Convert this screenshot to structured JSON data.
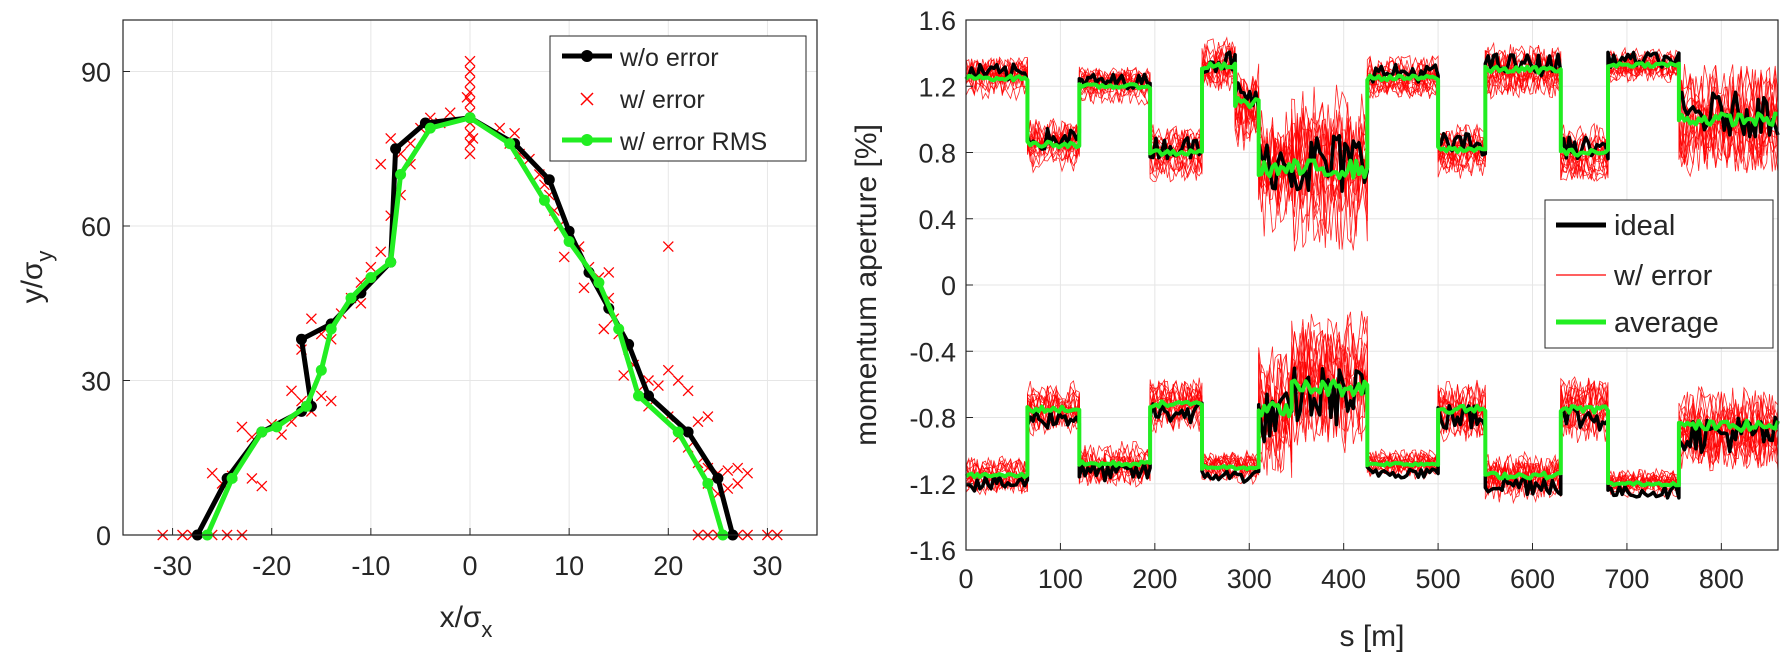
{
  "chart_data": [
    {
      "type": "line",
      "xlabel_main": "x/σ",
      "xlabel_sub": "x",
      "ylabel_main": "y/σ",
      "ylabel_sub": "y",
      "xlim": [
        -35,
        35
      ],
      "ylim": [
        0,
        100
      ],
      "xticks": [
        -30,
        -20,
        -10,
        0,
        10,
        20,
        30
      ],
      "yticks": [
        0,
        30,
        60,
        90
      ],
      "xtick_labels": [
        "-30",
        "-20",
        "-10",
        "0",
        "10",
        "20",
        "30"
      ],
      "ytick_labels": [
        "0",
        "30",
        "60",
        "90"
      ],
      "grid": true,
      "legend_position": "top-right",
      "colors": {
        "black": "#000000",
        "red": "#ff0000",
        "green": "#22ee22"
      },
      "series": [
        {
          "name": "w/o error",
          "color": "#000000",
          "points": [
            [
              -27.5,
              0
            ],
            [
              -24.5,
              11
            ],
            [
              -21,
              20
            ],
            [
              -17,
              24
            ],
            [
              -16,
              25
            ],
            [
              -17,
              38
            ],
            [
              -14,
              41
            ],
            [
              -11,
              47
            ],
            [
              -8,
              53
            ],
            [
              -7.5,
              75
            ],
            [
              -4.5,
              80
            ],
            [
              0,
              81
            ],
            [
              4.5,
              76
            ],
            [
              8,
              69
            ],
            [
              10,
              59
            ],
            [
              12,
              51
            ],
            [
              14,
              44
            ],
            [
              16,
              37
            ],
            [
              18,
              27
            ],
            [
              22,
              20
            ],
            [
              25,
              11
            ],
            [
              26.5,
              0
            ]
          ]
        },
        {
          "name": "w/ error",
          "color": "#ff0000",
          "points": [
            [
              -31,
              0
            ],
            [
              -29,
              0
            ],
            [
              -28,
              0
            ],
            [
              -26,
              0
            ],
            [
              -24.5,
              0
            ],
            [
              -23,
              0
            ],
            [
              -26,
              12
            ],
            [
              -24,
              11.5
            ],
            [
              -22,
              11
            ],
            [
              -25,
              10
            ],
            [
              -21,
              9.5
            ],
            [
              -23,
              21
            ],
            [
              -20,
              21.5
            ],
            [
              -18,
              22
            ],
            [
              -22,
              19
            ],
            [
              -19,
              19.5
            ],
            [
              -17,
              26
            ],
            [
              -18,
              28
            ],
            [
              -15,
              27
            ],
            [
              -16,
              24
            ],
            [
              -14,
              26
            ],
            [
              -17,
              36
            ],
            [
              -15,
              39
            ],
            [
              -16,
              42
            ],
            [
              -13,
              43
            ],
            [
              -12,
              46
            ],
            [
              -14,
              38
            ],
            [
              -11,
              49
            ],
            [
              -10,
              52
            ],
            [
              -9,
              55
            ],
            [
              -11,
              45
            ],
            [
              -8,
              62
            ],
            [
              -7,
              66
            ],
            [
              -9,
              72
            ],
            [
              -7,
              74
            ],
            [
              -6,
              72
            ],
            [
              -8,
              77
            ],
            [
              -5,
              79
            ],
            [
              -4,
              81
            ],
            [
              -3,
              80
            ],
            [
              -2,
              82
            ],
            [
              -6,
              76
            ],
            [
              0,
              74
            ],
            [
              0,
              76
            ],
            [
              0,
              78
            ],
            [
              0,
              80
            ],
            [
              0,
              82
            ],
            [
              0,
              84
            ],
            [
              0,
              86
            ],
            [
              0,
              88
            ],
            [
              0,
              90
            ],
            [
              0,
              92
            ],
            [
              0.3,
              77
            ],
            [
              -0.3,
              85
            ],
            [
              3,
              79
            ],
            [
              4,
              76
            ],
            [
              5,
              74
            ],
            [
              4.5,
              78
            ],
            [
              6,
              73
            ],
            [
              7,
              70
            ],
            [
              8,
              66
            ],
            [
              8.5,
              63
            ],
            [
              7.5,
              68
            ],
            [
              9,
              60
            ],
            [
              10,
              58
            ],
            [
              11,
              56
            ],
            [
              9.5,
              54
            ],
            [
              12,
              52
            ],
            [
              13,
              50
            ],
            [
              11.5,
              48
            ],
            [
              14,
              46
            ],
            [
              14.5,
              42
            ],
            [
              15,
              39
            ],
            [
              13.5,
              40
            ],
            [
              16,
              36
            ],
            [
              16.5,
              33
            ],
            [
              15.5,
              31
            ],
            [
              18,
              30
            ],
            [
              19,
              29
            ],
            [
              20,
              32
            ],
            [
              21,
              30
            ],
            [
              17,
              28
            ],
            [
              22,
              28
            ],
            [
              18,
              25
            ],
            [
              20,
              23
            ],
            [
              23,
              22
            ],
            [
              24,
              23
            ],
            [
              21,
              19
            ],
            [
              22,
              17
            ],
            [
              23,
              14
            ],
            [
              24,
              13
            ],
            [
              25,
              12
            ],
            [
              26,
              12.5
            ],
            [
              27,
              13
            ],
            [
              28,
              12
            ],
            [
              24,
              10
            ],
            [
              26,
              9
            ],
            [
              27,
              10
            ],
            [
              25,
              8
            ],
            [
              23,
              0
            ],
            [
              24,
              0
            ],
            [
              25,
              0
            ],
            [
              26,
              0
            ],
            [
              27,
              0
            ],
            [
              28,
              0
            ],
            [
              30,
              0
            ],
            [
              31,
              0
            ],
            [
              20,
              56
            ],
            [
              14,
              51
            ]
          ]
        },
        {
          "name": "w/ error RMS",
          "color": "#22ee22",
          "points": [
            [
              -26.5,
              0
            ],
            [
              -24,
              11
            ],
            [
              -21,
              20
            ],
            [
              -19.5,
              21
            ],
            [
              -16.5,
              25
            ],
            [
              -15,
              32
            ],
            [
              -14,
              40
            ],
            [
              -12,
              46
            ],
            [
              -10,
              50
            ],
            [
              -8,
              53
            ],
            [
              -7,
              70
            ],
            [
              -4,
              79
            ],
            [
              0,
              81
            ],
            [
              4,
              76
            ],
            [
              7.5,
              65
            ],
            [
              10,
              57
            ],
            [
              13,
              49
            ],
            [
              15,
              40
            ],
            [
              17,
              27
            ],
            [
              21,
              20
            ],
            [
              24,
              10
            ],
            [
              25.5,
              0
            ]
          ]
        }
      ]
    },
    {
      "type": "line",
      "xlabel": "s [m]",
      "ylabel": "momentum aperture [%]",
      "xlim": [
        0,
        860
      ],
      "ylim": [
        -1.6,
        1.6
      ],
      "xticks": [
        0,
        100,
        200,
        300,
        400,
        500,
        600,
        700,
        800
      ],
      "yticks": [
        -1.6,
        -1.2,
        -0.8,
        -0.4,
        0,
        0.4,
        0.8,
        1.2,
        1.6
      ],
      "xtick_labels": [
        "0",
        "100",
        "200",
        "300",
        "400",
        "500",
        "600",
        "700",
        "800"
      ],
      "ytick_labels": [
        "-1.6",
        "-1.2",
        "-0.8",
        "-0.4",
        "0",
        "0.4",
        "0.8",
        "1.2",
        "1.6"
      ],
      "grid": true,
      "legend_position": "right-middle",
      "colors": {
        "black": "#000000",
        "red": "#ff0000",
        "green": "#22ee22"
      },
      "segments": [
        {
          "s0": 0,
          "s1": 65,
          "pos": 1.25,
          "neg": -1.15,
          "pos_err": 0.12,
          "neg_err": 0.1
        },
        {
          "s0": 65,
          "s1": 120,
          "pos": 0.85,
          "neg": -0.75,
          "pos_err": 0.15,
          "neg_err": 0.15
        },
        {
          "s0": 120,
          "s1": 195,
          "pos": 1.2,
          "neg": -1.08,
          "pos_err": 0.1,
          "neg_err": 0.12
        },
        {
          "s0": 195,
          "s1": 250,
          "pos": 0.8,
          "neg": -0.72,
          "pos_err": 0.15,
          "neg_err": 0.15
        },
        {
          "s0": 250,
          "s1": 285,
          "pos": 1.32,
          "neg": -1.1,
          "pos_err": 0.15,
          "neg_err": 0.08
        },
        {
          "s0": 285,
          "s1": 310,
          "pos": 1.1,
          "neg": -1.1,
          "pos_err": 0.25,
          "neg_err": 0.1
        },
        {
          "s0": 310,
          "s1": 345,
          "pos": 0.7,
          "neg": -0.75,
          "pos_err": 0.35,
          "neg_err": 0.35
        },
        {
          "s0": 345,
          "s1": 425,
          "pos": 0.7,
          "neg": -0.62,
          "pos_err": 0.45,
          "neg_err": 0.4
        },
        {
          "s0": 425,
          "s1": 500,
          "pos": 1.25,
          "neg": -1.08,
          "pos_err": 0.12,
          "neg_err": 0.08
        },
        {
          "s0": 500,
          "s1": 550,
          "pos": 0.82,
          "neg": -0.75,
          "pos_err": 0.15,
          "neg_err": 0.18
        },
        {
          "s0": 550,
          "s1": 630,
          "pos": 1.3,
          "neg": -1.15,
          "pos_err": 0.15,
          "neg_err": 0.15
        },
        {
          "s0": 630,
          "s1": 680,
          "pos": 0.8,
          "neg": -0.75,
          "pos_err": 0.15,
          "neg_err": 0.18
        },
        {
          "s0": 680,
          "s1": 755,
          "pos": 1.33,
          "neg": -1.2,
          "pos_err": 0.1,
          "neg_err": 0.08
        },
        {
          "s0": 755,
          "s1": 860,
          "pos": 1.0,
          "neg": -0.85,
          "pos_err": 0.3,
          "neg_err": 0.25
        }
      ],
      "series_names": [
        "ideal",
        "w/ error",
        "average"
      ]
    }
  ]
}
